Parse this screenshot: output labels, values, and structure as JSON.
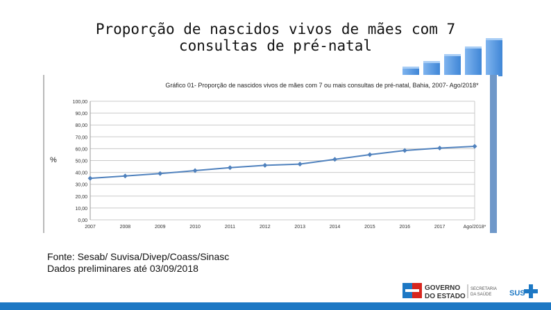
{
  "slide": {
    "title_line1": "Proporção de nascidos vivos de mães com 7",
    "title_line2": "consultas de pré-natal",
    "source_line1": "Fonte: Sesab/ Suvisa/Divep/Coass/Sinasc",
    "source_line2": "Dados preliminares até 03/09/2018"
  },
  "logos": {
    "governo_line1": "GOVERNO",
    "governo_line2": "DO ESTADO",
    "secretaria_line1": "SECRETARIA",
    "secretaria_line2": "DA SAÚDE",
    "sus": "SUS"
  },
  "colors": {
    "series": "#4f81bd",
    "brand_blue": "#1d78c4",
    "brand_red": "#d7261e"
  },
  "chart_data": {
    "type": "line",
    "title": "Gráfico 01- Proporção de nascidos vivos de mães com 7 ou mais consultas de pré-natal, Bahia, 2007- Ago/2018*",
    "ylabel": "%",
    "xlabel": "",
    "ylim": [
      0,
      100
    ],
    "yticks": [
      "0,00",
      "10,00",
      "20,00",
      "30,00",
      "40,00",
      "50,00",
      "60,00",
      "70,00",
      "80,00",
      "90,00",
      "100,00"
    ],
    "categories": [
      "2007",
      "2008",
      "2009",
      "2010",
      "2011",
      "2012",
      "2013",
      "2014",
      "2015",
      "2016",
      "2017",
      "Ago/2018*"
    ],
    "series": [
      {
        "name": "Proporção",
        "values": [
          35.0,
          37.0,
          39.0,
          41.5,
          44.0,
          46.0,
          47.0,
          51.0,
          55.0,
          58.5,
          60.5,
          62.0
        ]
      }
    ]
  }
}
